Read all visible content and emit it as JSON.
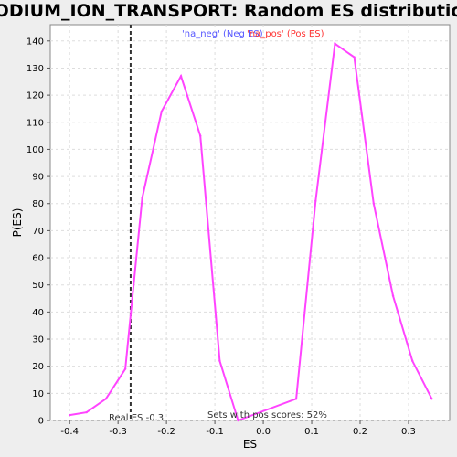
{
  "chart_data": {
    "type": "line",
    "title": "SODIUM_ION_TRANSPORT: Random ES distribution",
    "xlabel": "ES",
    "ylabel": "P(ES)",
    "xlim": [
      -0.44,
      0.385
    ],
    "ylim": [
      0,
      146
    ],
    "x_ticks": [
      -0.4,
      -0.3,
      -0.2,
      -0.1,
      0.0,
      0.1,
      0.2,
      0.3
    ],
    "x_tick_labels": [
      "-0.4",
      "-0.3",
      "-0.2",
      "-0.1",
      "0.0",
      "0.1",
      "0.2",
      "0.3"
    ],
    "y_ticks": [
      0,
      10,
      20,
      30,
      40,
      50,
      60,
      70,
      80,
      90,
      100,
      110,
      120,
      130,
      140
    ],
    "grid": true,
    "legend": [
      {
        "label": "'na_neg' (Neg ES)",
        "color": "#5555ff"
      },
      {
        "label": "'na_pos' (Pos ES)",
        "color": "#ff3333"
      }
    ],
    "legend_placement": "top-center",
    "series": [
      {
        "color": "#ff44ff",
        "x": [
          -0.4,
          -0.365,
          -0.325,
          -0.285,
          -0.25,
          -0.21,
          -0.17,
          -0.13,
          -0.09,
          -0.052,
          0.068,
          0.108,
          0.148,
          0.188,
          0.228,
          0.268,
          0.308,
          0.348
        ],
        "y": [
          2,
          3,
          8,
          19,
          82,
          114,
          127,
          105,
          22,
          0,
          8,
          81,
          139,
          134,
          80,
          46,
          22,
          8
        ]
      }
    ],
    "annotations": {
      "real_es_value": -0.274,
      "real_es_label": "Real ES -0.3",
      "pos_scores_label": "Sets with pos scores: 52%"
    }
  }
}
